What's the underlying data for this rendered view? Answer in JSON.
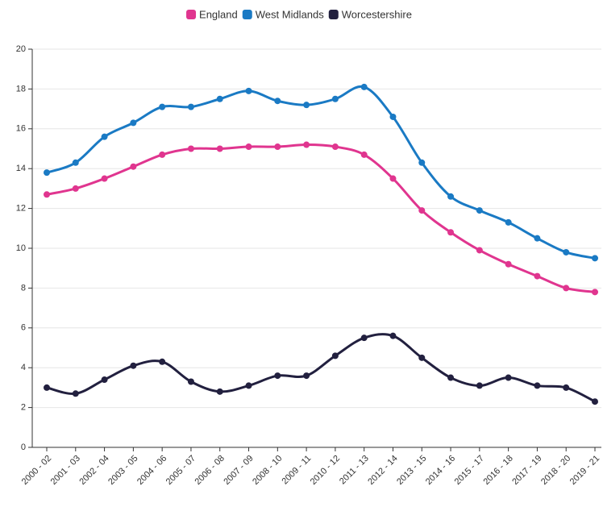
{
  "chart_data": {
    "type": "line",
    "categories": [
      "2000 - 02",
      "2001 - 03",
      "2002 - 04",
      "2003 - 05",
      "2004 - 06",
      "2005 - 07",
      "2006 - 08",
      "2007 - 09",
      "2008 - 10",
      "2009 - 11",
      "2010 - 12",
      "2011 - 13",
      "2012 - 14",
      "2013 - 15",
      "2014 - 16",
      "2015 - 17",
      "2016 - 18",
      "2017 - 19",
      "2018 - 20",
      "2019 - 21"
    ],
    "series": [
      {
        "name": "England",
        "color": "#e0358f",
        "values": [
          12.7,
          13.0,
          13.5,
          14.1,
          14.7,
          15.0,
          15.0,
          15.1,
          15.1,
          15.2,
          15.1,
          14.7,
          13.5,
          11.9,
          10.8,
          9.9,
          9.2,
          8.6,
          8.0,
          7.8
        ]
      },
      {
        "name": "West Midlands",
        "color": "#1a7ac4",
        "values": [
          13.8,
          14.3,
          15.6,
          16.3,
          17.1,
          17.1,
          17.5,
          17.9,
          17.4,
          17.2,
          17.5,
          18.1,
          16.6,
          14.3,
          12.6,
          11.9,
          11.3,
          10.5,
          9.8,
          9.5
        ]
      },
      {
        "name": "Worcestershire",
        "color": "#22203f",
        "values": [
          3.0,
          2.7,
          3.4,
          4.1,
          4.3,
          3.3,
          2.8,
          3.1,
          3.6,
          3.6,
          4.6,
          5.5,
          5.6,
          4.5,
          3.5,
          3.1,
          3.5,
          3.1,
          3.0,
          2.3
        ]
      }
    ],
    "ylim": [
      0,
      20
    ],
    "yticks": [
      0,
      2,
      4,
      6,
      8,
      10,
      12,
      14,
      16,
      18,
      20
    ],
    "grid": true,
    "legend": "top"
  }
}
